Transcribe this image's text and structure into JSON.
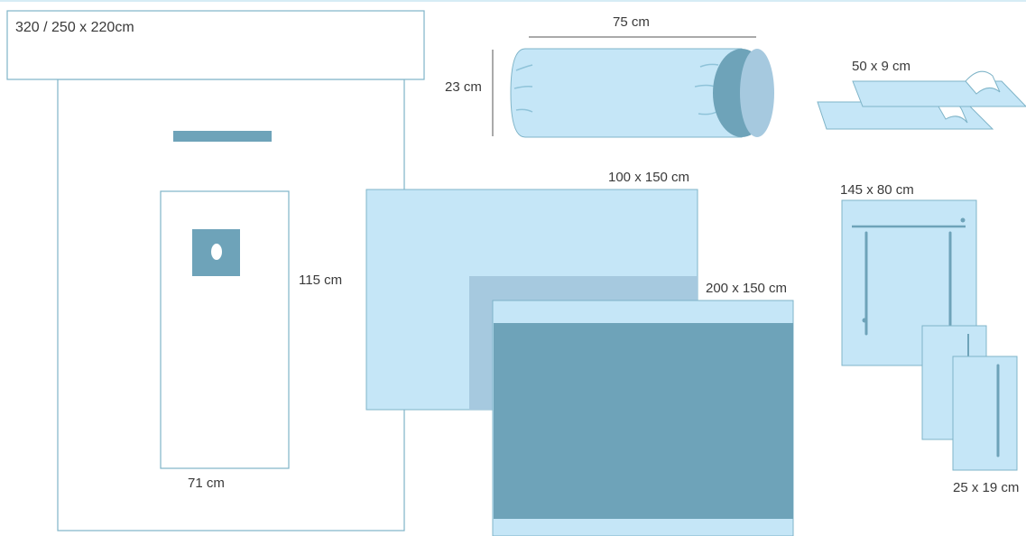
{
  "labels": {
    "main_drape_size": "320 / 250 x 220cm",
    "fenestration_height": "115 cm",
    "fenestration_width": "71 cm",
    "roll_length": "75 cm",
    "roll_diameter": "23 cm",
    "tape_size": "50 x 9 cm",
    "sheet_small": "100 x 150 cm",
    "sheet_large": "200 x 150 cm",
    "towel_large": "145 x 80 cm",
    "towel_small": "25 x 19 cm"
  },
  "colors": {
    "light_blue": "#c5e6f7",
    "mid_blue": "#a6c9df",
    "dark_teal": "#6ea3b9",
    "outline": "#7fb4c8",
    "text": "#3a3a3a"
  }
}
